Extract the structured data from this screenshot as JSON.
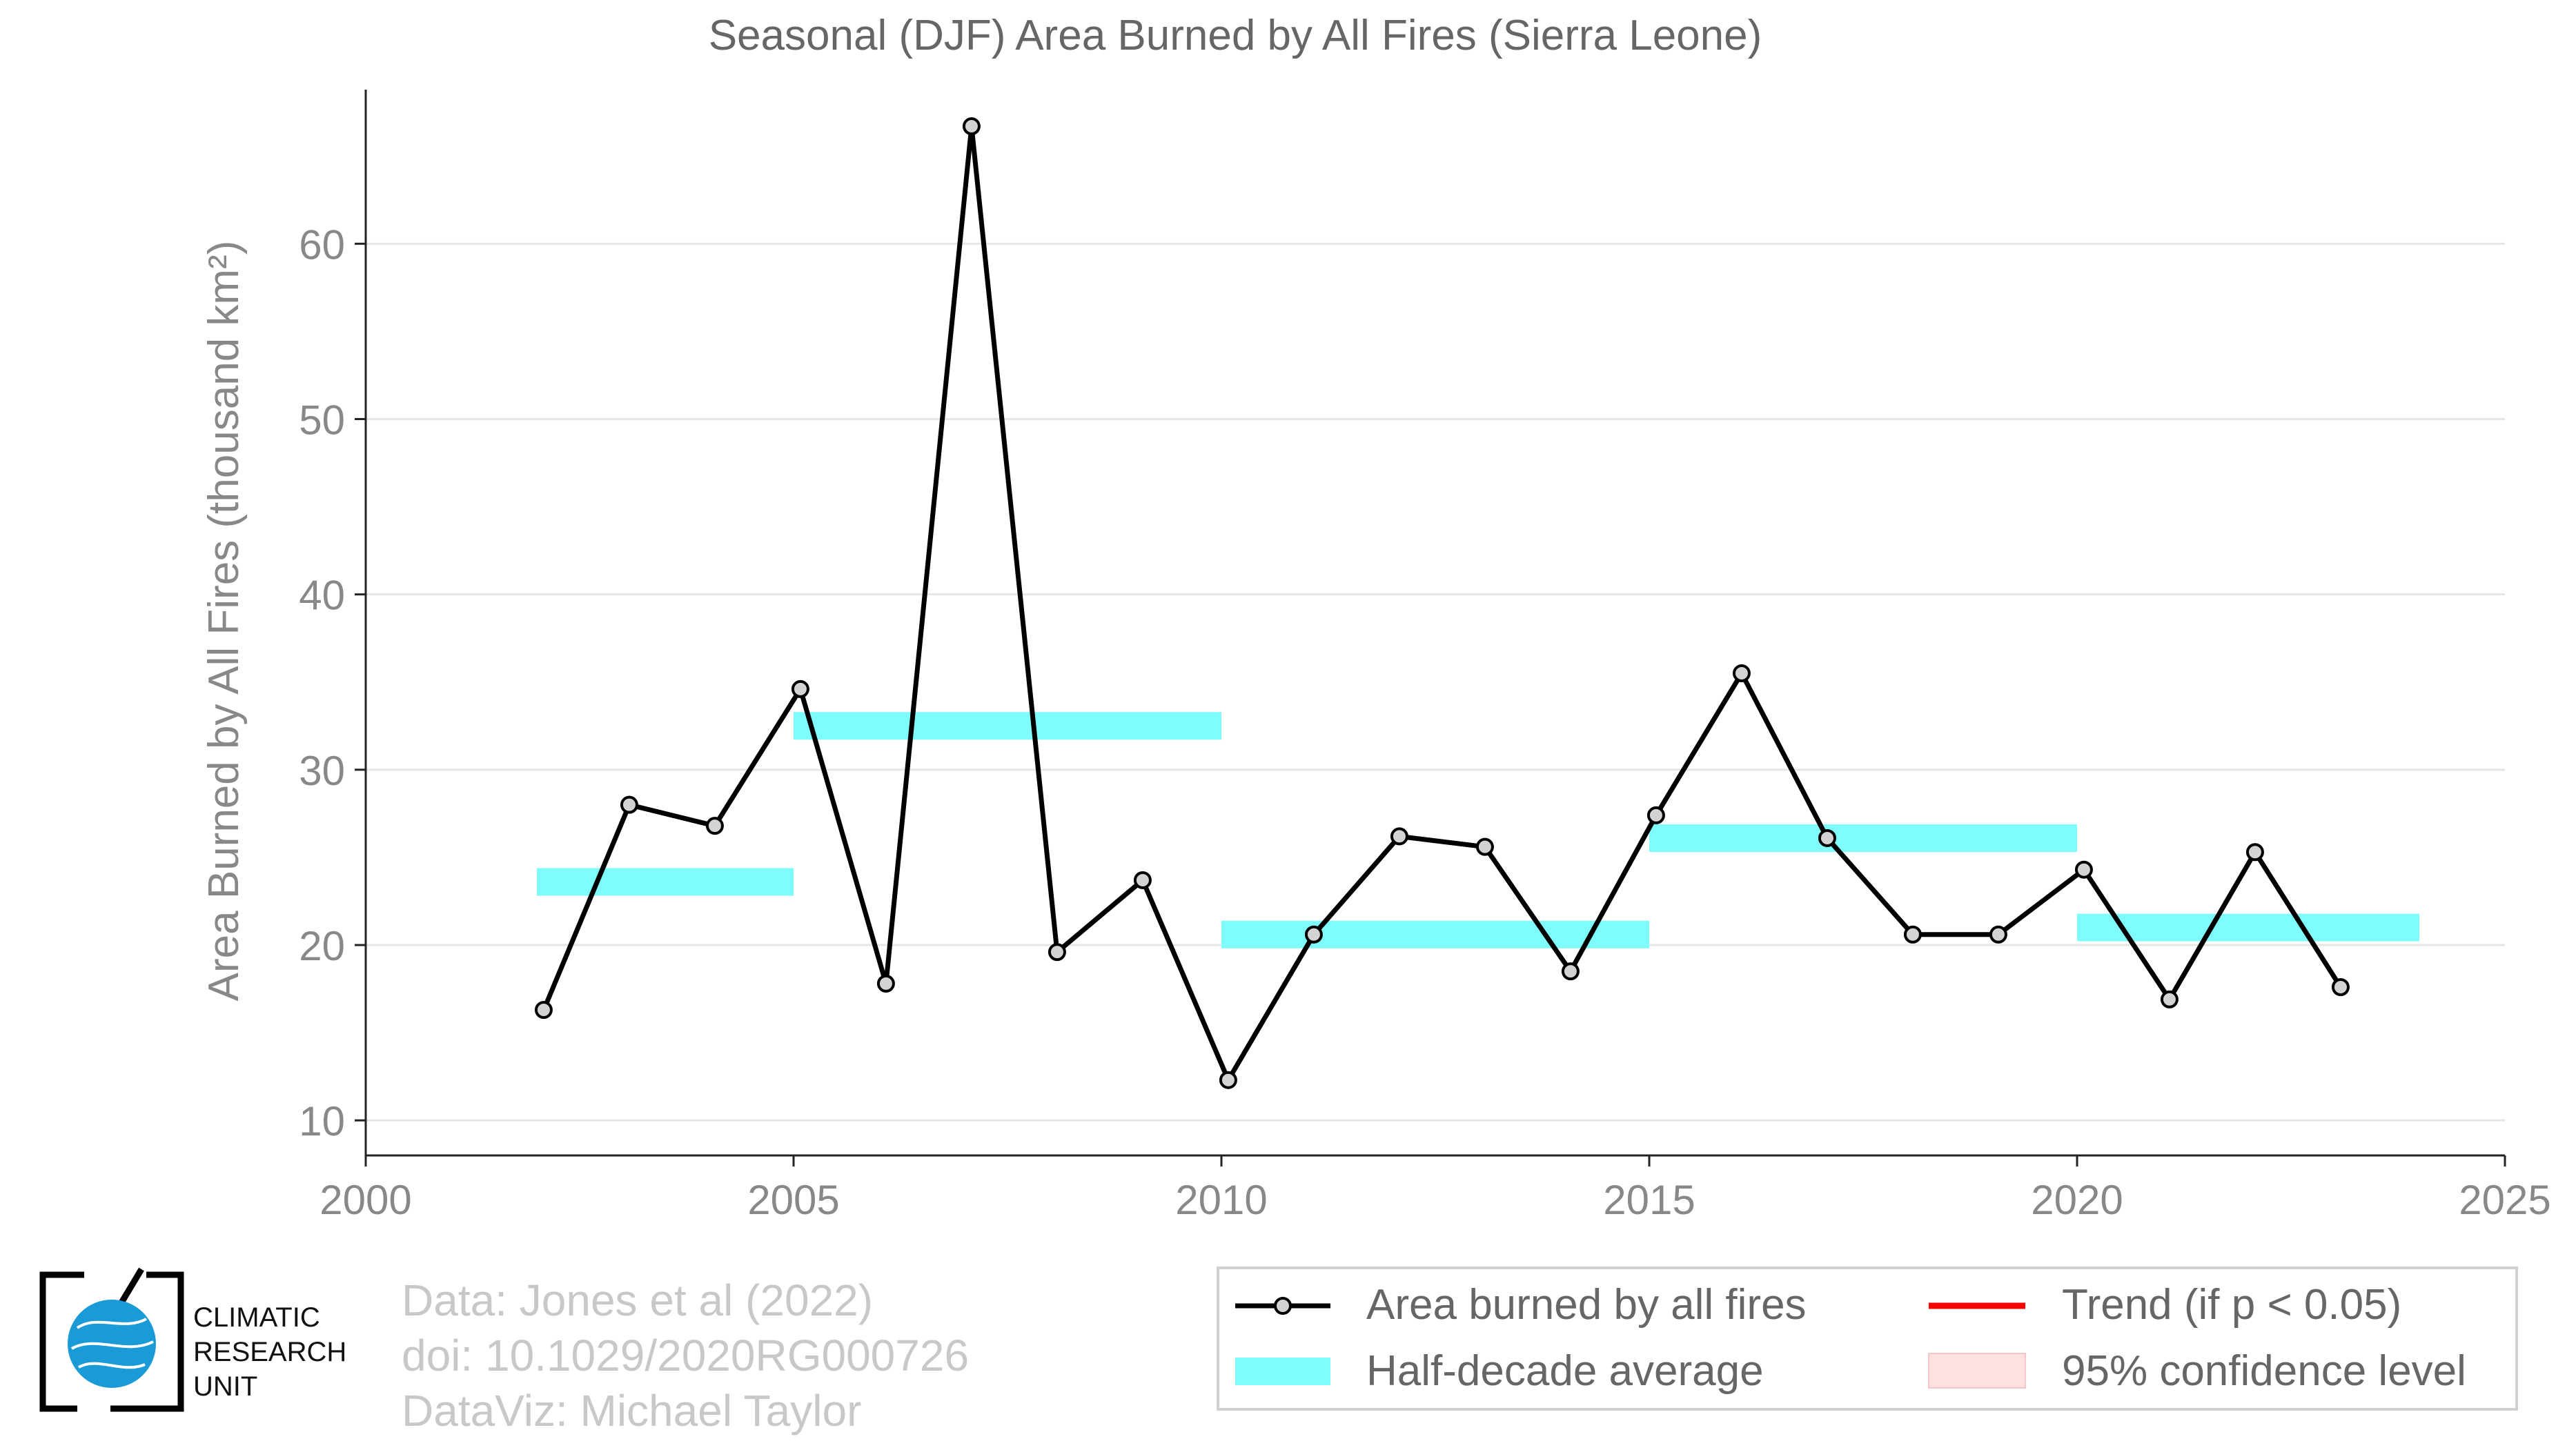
{
  "chart_data": {
    "type": "line",
    "title": "Seasonal (DJF) Area Burned by All Fires (Sierra Leone)",
    "ylabel": "Area Burned by All Fires (thousand km²)",
    "xlabel": "",
    "xlim": [
      2000,
      2025
    ],
    "ylim": [
      8,
      68
    ],
    "xticks": [
      2000,
      2005,
      2010,
      2015,
      2020,
      2025
    ],
    "yticks": [
      10,
      20,
      30,
      40,
      50,
      60
    ],
    "grid": "horizontal",
    "legend_position": "bottom-right",
    "series": [
      {
        "name": "Area burned by all fires",
        "color": "#000000",
        "marker_fill": "#d3d3d3",
        "x": [
          2002.08,
          2003.08,
          2004.08,
          2005.08,
          2006.08,
          2007.08,
          2008.08,
          2009.08,
          2010.08,
          2011.08,
          2012.08,
          2013.08,
          2014.08,
          2015.08,
          2016.08,
          2017.08,
          2018.08,
          2019.08,
          2020.08,
          2021.08,
          2022.08,
          2023.08
        ],
        "y": [
          16.3,
          28.0,
          26.8,
          34.6,
          17.8,
          66.7,
          19.6,
          23.7,
          12.3,
          20.6,
          26.2,
          25.6,
          18.5,
          27.4,
          35.5,
          26.1,
          20.6,
          20.6,
          24.3,
          16.9,
          25.3,
          17.6
        ]
      }
    ],
    "half_decade_average": {
      "name": "Half-decade average",
      "color": "#7ffcfc",
      "segments": [
        {
          "x_start": 2002,
          "x_end": 2005,
          "value": 23.6
        },
        {
          "x_start": 2005,
          "x_end": 2010,
          "value": 32.5
        },
        {
          "x_start": 2010,
          "x_end": 2015,
          "value": 20.6
        },
        {
          "x_start": 2015,
          "x_end": 2020,
          "value": 26.1
        },
        {
          "x_start": 2020,
          "x_end": 2024,
          "value": 21.0
        }
      ]
    },
    "legend": [
      {
        "label": "Area burned by all fires",
        "kind": "line-marker",
        "color": "#000000"
      },
      {
        "label": "Trend (if p < 0.05)",
        "kind": "line",
        "color": "#ff0000"
      },
      {
        "label": "Half-decade average",
        "kind": "band",
        "color": "#7ffcfc"
      },
      {
        "label": "95% confidence level",
        "kind": "patch",
        "color": "#ffe0e0"
      }
    ]
  },
  "credits": {
    "data": "Data: Jones et al (2022)",
    "doi": "doi: 10.1029/2020RG000726",
    "dataviz": "DataViz: Michael Taylor"
  },
  "logo": {
    "line1": "CLIMATIC",
    "line2": "RESEARCH",
    "line3": "UNIT",
    "globe_color": "#1a9ad6"
  }
}
